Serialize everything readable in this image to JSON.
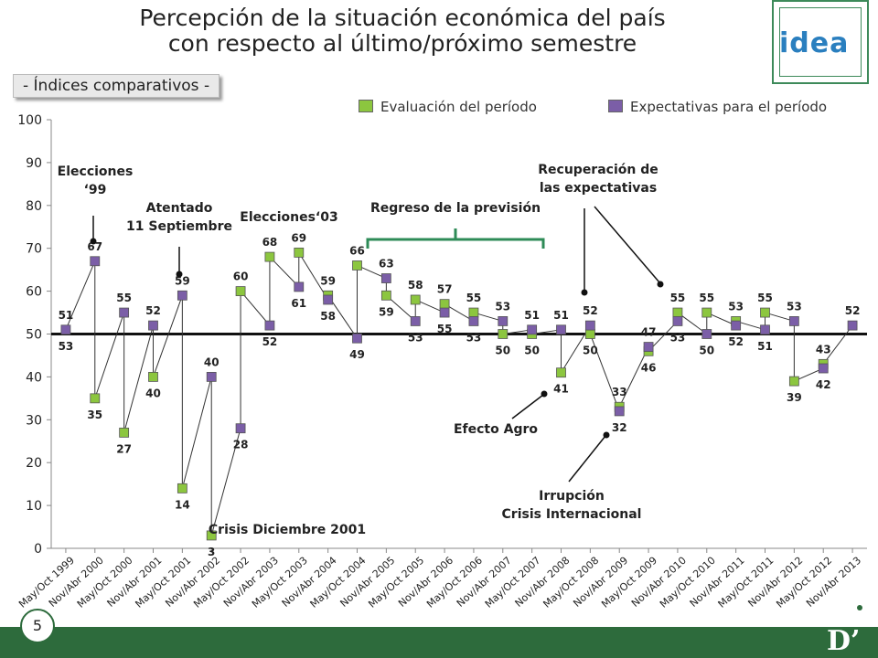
{
  "header": {
    "title_line1": "Percepción de la situación económica del país",
    "title_line2": "con respecto al último/próximo semestre",
    "subtitle": "- Índices comparativos -",
    "logo": "idea"
  },
  "footer": {
    "page_number": "5",
    "brand_mark": "D’"
  },
  "colors": {
    "evaluacion": "#8cc63f",
    "expectativas": "#7b5ea7",
    "baseline": "#111111",
    "bracket": "#2e8b57",
    "footer_bar": "#2d6b3c"
  },
  "chart_data": {
    "type": "line",
    "title": "Percepción de la situación económica del país con respecto al último/próximo semestre",
    "subtitle": "- Índices comparativos -",
    "categories": [
      "May/Oct 1999",
      "Nov/Abr 2000",
      "May/Oct 2000",
      "Nov/Abr 2001",
      "May/Oct 2001",
      "Nov/Abr 2002",
      "May/Oct 2002",
      "Nov/Abr 2003",
      "May/Oct 2003",
      "Nov/Abr 2004",
      "May/Oct 2004",
      "Nov/Abr 2005",
      "May/Oct 2005",
      "Nov/Abr 2006",
      "May/Oct 2006",
      "Nov/Abr 2007",
      "May/Oct 2007",
      "Nov/Abr 2008",
      "May/Oct 2008",
      "Nov/Abr 2009",
      "May/Oct 2009",
      "Nov/Abr 2010",
      "May/Oct 2010",
      "Nov/Abr 2011",
      "May/Oct 2011",
      "Nov/Abr 2012",
      "May/Oct 2012",
      "Nov/Abr 2013"
    ],
    "ylim": [
      0,
      100
    ],
    "yticks": [
      0,
      10,
      20,
      30,
      40,
      50,
      60,
      70,
      80,
      90,
      100
    ],
    "reference_line": 50,
    "legend_position": "top-right",
    "series": [
      {
        "name": "Evaluación del período",
        "color": "#8cc63f",
        "values": [
          null,
          35,
          27,
          40,
          14,
          3,
          60,
          68,
          69,
          59,
          66,
          59,
          58,
          57,
          55,
          50,
          50,
          41,
          50,
          33,
          46,
          55,
          55,
          53,
          55,
          39,
          43,
          null
        ]
      },
      {
        "name": "Expectativas para el período",
        "color": "#7b5ea7",
        "values": [
          51,
          67,
          55,
          52,
          59,
          40,
          28,
          52,
          61,
          58,
          49,
          63,
          53,
          55,
          53,
          53,
          51,
          51,
          52,
          32,
          47,
          53,
          50,
          52,
          51,
          53,
          42,
          52
        ]
      }
    ],
    "data_labels": [
      {
        "idx": 0,
        "v": 51,
        "pos": "above"
      },
      {
        "idx": 0,
        "v": 53,
        "pos": "below"
      },
      {
        "idx": 1,
        "v": 67,
        "pos": "above"
      },
      {
        "idx": 1,
        "v": 35,
        "pos": "below"
      },
      {
        "idx": 2,
        "v": 55,
        "pos": "above"
      },
      {
        "idx": 2,
        "v": 27,
        "pos": "below"
      },
      {
        "idx": 3,
        "v": 52,
        "pos": "above"
      },
      {
        "idx": 3,
        "v": 40,
        "pos": "below"
      },
      {
        "idx": 4,
        "v": 59,
        "pos": "above"
      },
      {
        "idx": 4,
        "v": 14,
        "pos": "below"
      },
      {
        "idx": 5,
        "v": 40,
        "pos": "above"
      },
      {
        "idx": 5,
        "v": 3,
        "pos": "below"
      },
      {
        "idx": 6,
        "v": 60,
        "pos": "above"
      },
      {
        "idx": 6,
        "v": 28,
        "pos": "below"
      },
      {
        "idx": 7,
        "v": 68,
        "pos": "above"
      },
      {
        "idx": 7,
        "v": 52,
        "pos": "below"
      },
      {
        "idx": 8,
        "v": 69,
        "pos": "above"
      },
      {
        "idx": 8,
        "v": 61,
        "pos": "below"
      },
      {
        "idx": 9,
        "v": 59,
        "pos": "above"
      },
      {
        "idx": 9,
        "v": 58,
        "pos": "below"
      },
      {
        "idx": 10,
        "v": 66,
        "pos": "above"
      },
      {
        "idx": 10,
        "v": 49,
        "pos": "below"
      },
      {
        "idx": 11,
        "v": 63,
        "pos": "above"
      },
      {
        "idx": 11,
        "v": 59,
        "pos": "below"
      },
      {
        "idx": 12,
        "v": 58,
        "pos": "above"
      },
      {
        "idx": 12,
        "v": 53,
        "pos": "below"
      },
      {
        "idx": 13,
        "v": 57,
        "pos": "above"
      },
      {
        "idx": 13,
        "v": 55,
        "pos": "below"
      },
      {
        "idx": 14,
        "v": 55,
        "pos": "above"
      },
      {
        "idx": 14,
        "v": 53,
        "pos": "below"
      },
      {
        "idx": 15,
        "v": 53,
        "pos": "above"
      },
      {
        "idx": 15,
        "v": 50,
        "pos": "below"
      },
      {
        "idx": 16,
        "v": 51,
        "pos": "above"
      },
      {
        "idx": 16,
        "v": 50,
        "pos": "below"
      },
      {
        "idx": 17,
        "v": 51,
        "pos": "above"
      },
      {
        "idx": 17,
        "v": 41,
        "pos": "below"
      },
      {
        "idx": 18,
        "v": 52,
        "pos": "above"
      },
      {
        "idx": 18,
        "v": 50,
        "pos": "below"
      },
      {
        "idx": 19,
        "v": 33,
        "pos": "above"
      },
      {
        "idx": 19,
        "v": 32,
        "pos": "below"
      },
      {
        "idx": 20,
        "v": 47,
        "pos": "above"
      },
      {
        "idx": 20,
        "v": 46,
        "pos": "below"
      },
      {
        "idx": 21,
        "v": 55,
        "pos": "above"
      },
      {
        "idx": 21,
        "v": 53,
        "pos": "below"
      },
      {
        "idx": 22,
        "v": 55,
        "pos": "above"
      },
      {
        "idx": 22,
        "v": 50,
        "pos": "below"
      },
      {
        "idx": 23,
        "v": 53,
        "pos": "above"
      },
      {
        "idx": 23,
        "v": 52,
        "pos": "below"
      },
      {
        "idx": 24,
        "v": 55,
        "pos": "above"
      },
      {
        "idx": 24,
        "v": 51,
        "pos": "below"
      },
      {
        "idx": 25,
        "v": 53,
        "pos": "above"
      },
      {
        "idx": 25,
        "v": 39,
        "pos": "below"
      },
      {
        "idx": 26,
        "v": 43,
        "pos": "above"
      },
      {
        "idx": 26,
        "v": 42,
        "pos": "below"
      },
      {
        "idx": 27,
        "v": 52,
        "pos": "above"
      }
    ],
    "annotations": [
      {
        "text": [
          "Elecciones",
          "‘99"
        ]
      },
      {
        "text": [
          "Atentado",
          "11 Septiembre"
        ]
      },
      {
        "text": [
          "Elecciones‘03"
        ]
      },
      {
        "text": [
          "Regreso de la previsión"
        ]
      },
      {
        "text": [
          "Recuperación de",
          "las expectativas"
        ]
      },
      {
        "text": [
          "Efecto Agro"
        ]
      },
      {
        "text": [
          "Irrupción",
          "Crisis Internacional"
        ]
      },
      {
        "text": [
          "Crisis Diciembre 2001"
        ]
      }
    ]
  }
}
